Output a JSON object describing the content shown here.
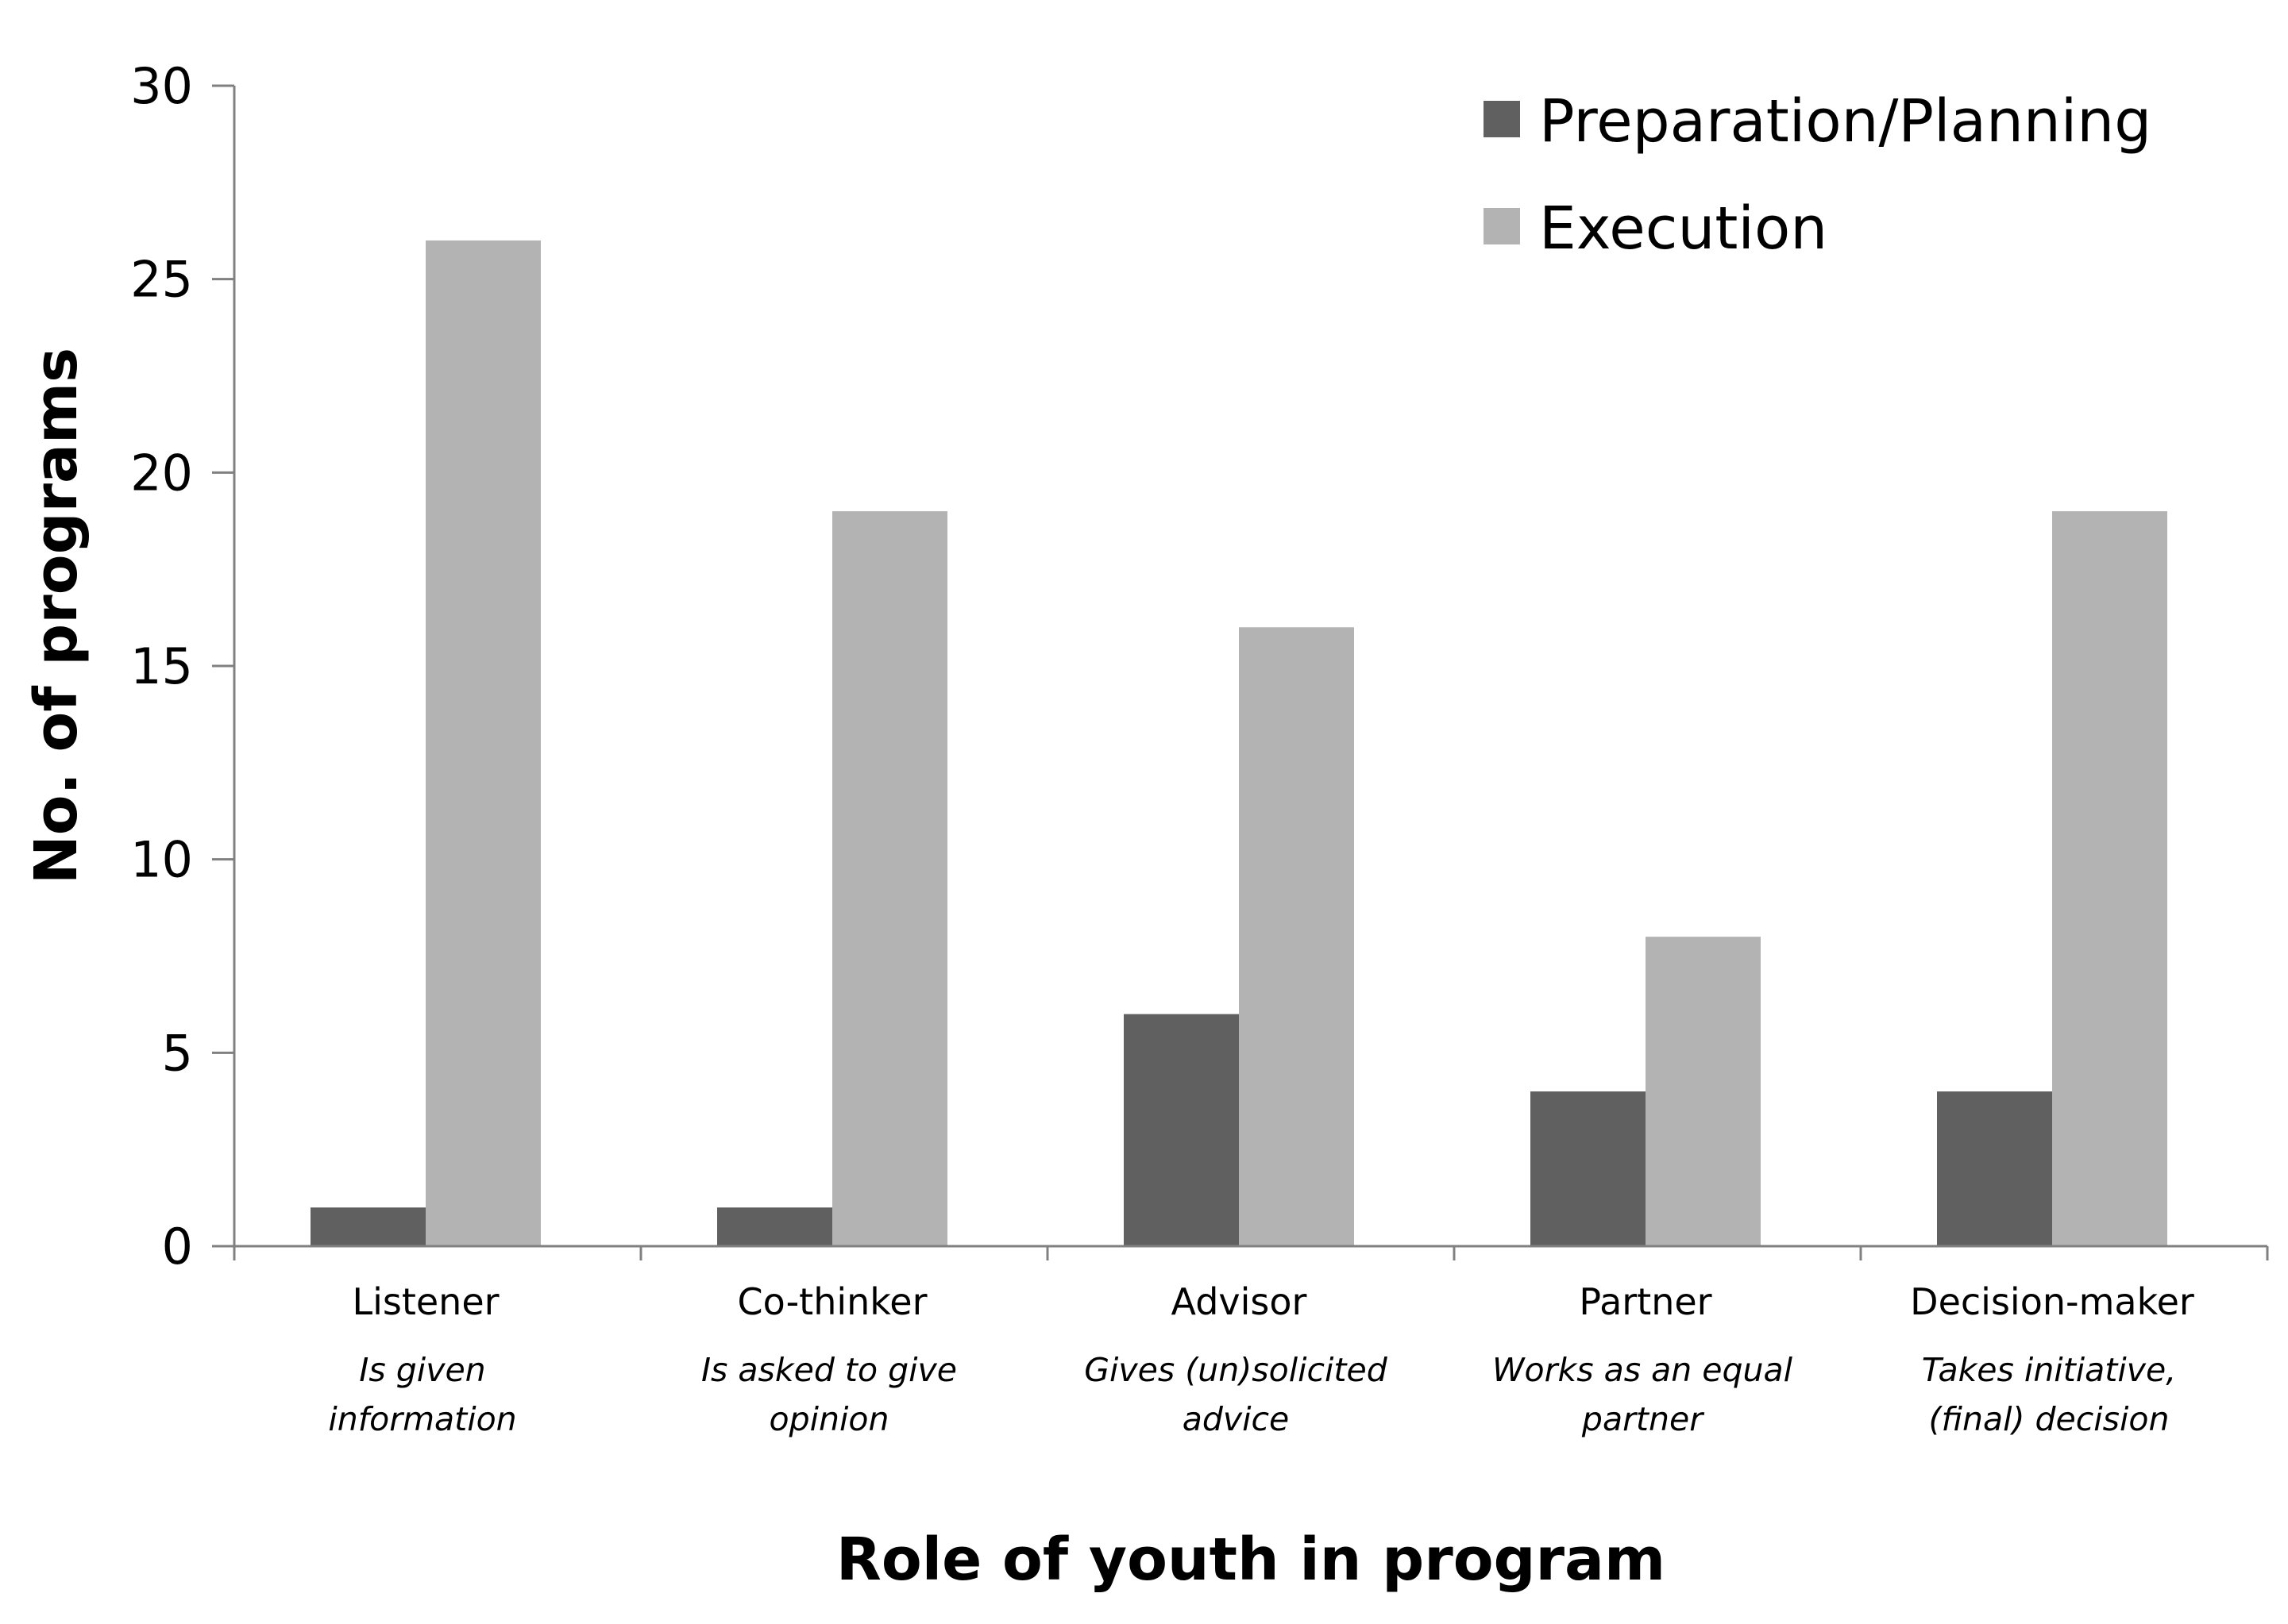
{
  "chart_data": {
    "type": "bar",
    "title": "",
    "xlabel": "Role of youth in program",
    "ylabel": "No. of programs",
    "ylim": [
      0,
      30
    ],
    "yticks": [
      0,
      5,
      10,
      15,
      20,
      25,
      30
    ],
    "grid": false,
    "legend_position": "top-right",
    "categories": [
      "Listener",
      "Co-thinker",
      "Advisor",
      "Partner",
      "Decision-maker"
    ],
    "category_descriptions": [
      [
        "Is given",
        "information"
      ],
      [
        "Is asked to give",
        "opinion"
      ],
      [
        "Gives (un)solicited",
        "advice"
      ],
      [
        "Works as an equal",
        "partner"
      ],
      [
        "Takes initiative,",
        "(final) decision"
      ]
    ],
    "series": [
      {
        "name": "Preparation/Planning",
        "color": "#606060",
        "values": [
          1,
          1,
          6,
          4,
          4
        ]
      },
      {
        "name": "Execution",
        "color": "#b3b3b3",
        "values": [
          26,
          19,
          16,
          8,
          19
        ]
      }
    ]
  }
}
